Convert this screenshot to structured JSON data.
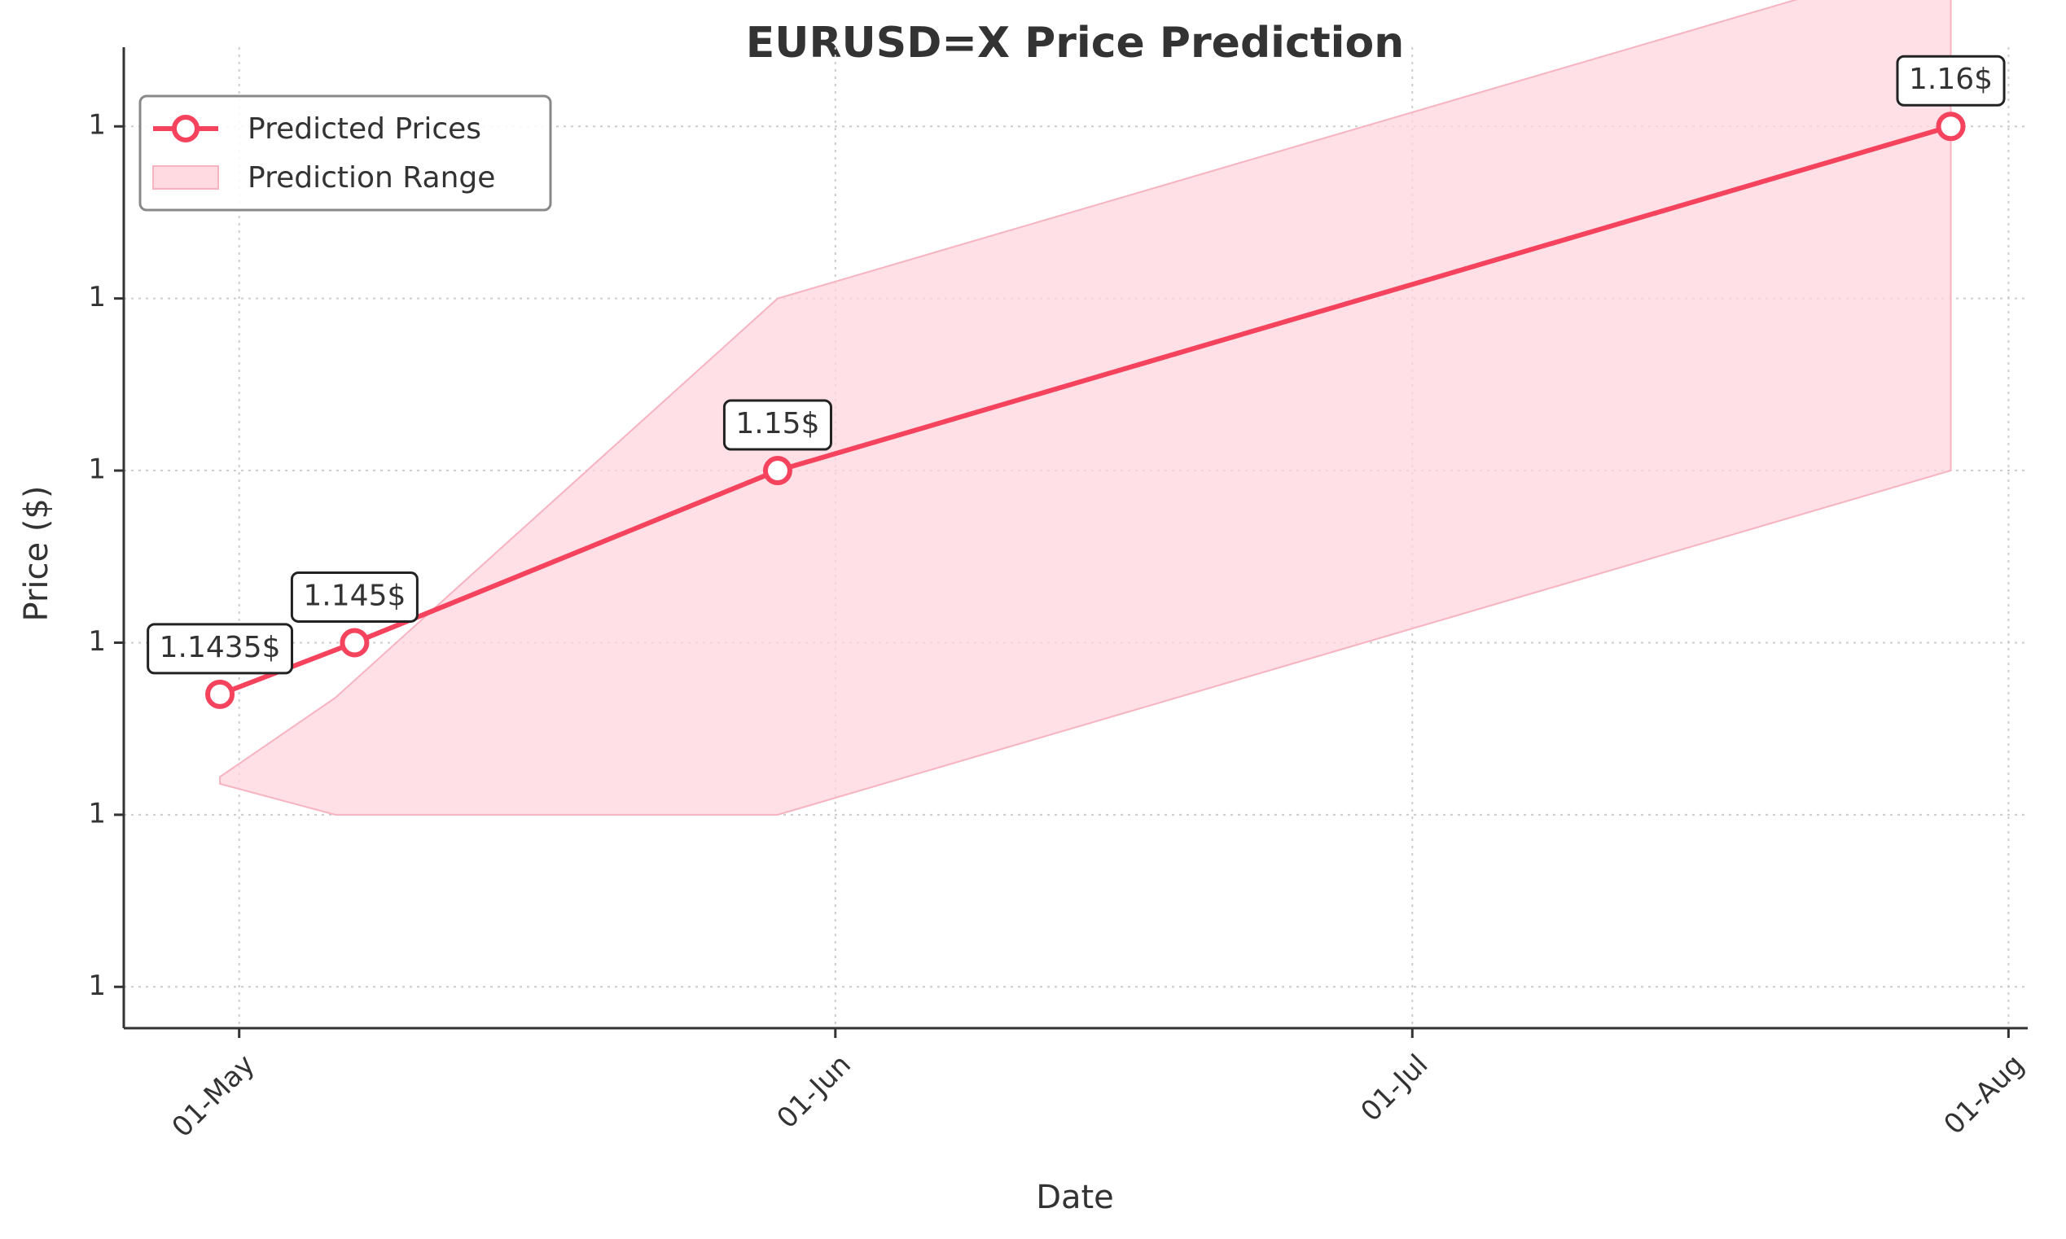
{
  "chart_data": {
    "type": "line",
    "title": "EURUSD=X Price Prediction",
    "xlabel": "Date",
    "ylabel": "Price ($)",
    "x_tick_labels": [
      "01-May",
      "01-Jun",
      "01-Jul",
      "01-Aug"
    ],
    "x_tick_dates": [
      "2025-05-01",
      "2025-06-01",
      "2025-07-01",
      "2025-08-01"
    ],
    "y_tick_labels": [
      "1",
      "1",
      "1",
      "1",
      "1",
      "1"
    ],
    "y_tick_values": [
      1.135,
      1.14,
      1.145,
      1.15,
      1.155,
      1.16
    ],
    "xlim": [
      "2025-04-25",
      "2025-08-02"
    ],
    "ylim": [
      1.1338,
      1.1623
    ],
    "grid": true,
    "legend_position": "upper left",
    "colors": {
      "line": "#f5435e",
      "band": "#ffd6de",
      "band_edge": "#f7b3c0",
      "axis": "#333333",
      "grid": "#cccccc"
    },
    "series": [
      {
        "name": "Predicted Prices",
        "x": [
          "2025-04-30",
          "2025-05-07",
          "2025-05-29",
          "2025-07-29"
        ],
        "y": [
          1.1435,
          1.145,
          1.15,
          1.16
        ],
        "labels": [
          "1.1435$",
          "1.145$",
          "1.15$",
          "1.16$"
        ]
      }
    ],
    "band": {
      "name": "Prediction Range",
      "x": [
        "2025-04-30",
        "2025-05-06",
        "2025-05-29",
        "2025-07-29"
      ],
      "upper": [
        1.1411,
        1.1434,
        1.155,
        1.165
      ],
      "lower": [
        1.1409,
        1.14,
        1.14,
        1.15
      ]
    }
  }
}
